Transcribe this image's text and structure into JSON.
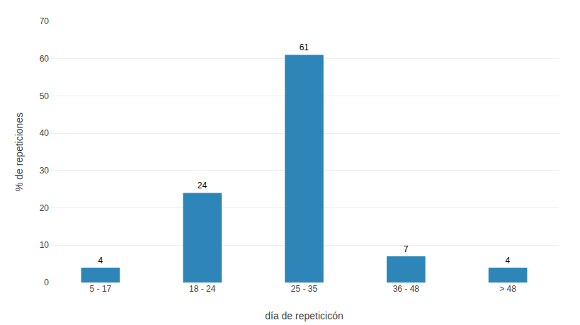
{
  "chart_data": {
    "type": "bar",
    "categories": [
      "5 - 17",
      "18 - 24",
      "25 - 35",
      "36 - 48",
      "> 48"
    ],
    "values": [
      4,
      24,
      61,
      7,
      4
    ],
    "color": "#2e86b8",
    "xlabel": "día de repeticicón",
    "ylabel": "% de repeticiones",
    "ylim": [
      0,
      70
    ],
    "yticks": [
      0,
      10,
      20,
      30,
      40,
      50,
      60,
      70
    ],
    "grid": true,
    "data_labels": true
  }
}
